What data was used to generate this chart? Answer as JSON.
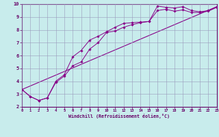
{
  "xlabel": "Windchill (Refroidissement éolien,°C)",
  "background_color": "#c8ecec",
  "grid_color": "#9999bb",
  "line_color": "#880088",
  "xlim": [
    0,
    23
  ],
  "ylim": [
    2,
    10
  ],
  "xticks": [
    0,
    1,
    2,
    3,
    4,
    5,
    6,
    7,
    8,
    9,
    10,
    11,
    12,
    13,
    14,
    15,
    16,
    17,
    18,
    19,
    20,
    21,
    22,
    23
  ],
  "yticks": [
    2,
    3,
    4,
    5,
    6,
    7,
    8,
    9,
    10
  ],
  "series1_x": [
    0,
    1,
    2,
    3,
    4,
    5,
    6,
    7,
    8,
    9,
    10,
    11,
    12,
    13,
    14,
    15,
    16,
    17,
    18,
    19,
    20,
    21,
    22,
    23
  ],
  "series1_y": [
    3.35,
    2.8,
    2.5,
    2.7,
    4.0,
    4.5,
    5.9,
    6.4,
    7.2,
    7.5,
    7.85,
    8.2,
    8.5,
    8.55,
    8.6,
    8.65,
    9.85,
    9.75,
    9.7,
    9.8,
    9.5,
    9.4,
    9.5,
    9.8
  ],
  "series2_x": [
    0,
    1,
    2,
    3,
    4,
    5,
    6,
    7,
    8,
    9,
    10,
    11,
    12,
    13,
    14,
    15,
    16,
    17,
    18,
    19,
    20,
    21,
    22,
    23
  ],
  "series2_y": [
    3.35,
    2.8,
    2.5,
    2.7,
    3.9,
    4.4,
    5.2,
    5.5,
    6.5,
    7.0,
    7.8,
    7.9,
    8.2,
    8.4,
    8.55,
    8.65,
    9.5,
    9.6,
    9.45,
    9.55,
    9.35,
    9.35,
    9.45,
    9.75
  ],
  "series3_x": [
    0,
    23
  ],
  "series3_y": [
    3.35,
    9.8
  ]
}
